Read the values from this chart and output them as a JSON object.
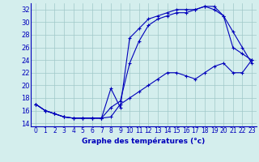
{
  "title": "",
  "xlabel": "Graphe des températures (°c)",
  "background_color": "#d4eeed",
  "grid_color": "#a0c8c8",
  "line_color": "#0000bb",
  "xlim_min": -0.5,
  "xlim_max": 23.5,
  "ylim_min": 13.5,
  "ylim_max": 33.0,
  "xticks": [
    0,
    1,
    2,
    3,
    4,
    5,
    6,
    7,
    8,
    9,
    10,
    11,
    12,
    13,
    14,
    15,
    16,
    17,
    18,
    19,
    20,
    21,
    22,
    23
  ],
  "yticks": [
    14,
    16,
    18,
    20,
    22,
    24,
    26,
    28,
    30,
    32
  ],
  "line1_x": [
    0,
    1,
    2,
    3,
    4,
    5,
    6,
    7,
    8,
    9,
    10,
    11,
    12,
    13,
    14,
    15,
    16,
    17,
    18,
    19,
    20,
    21,
    22,
    23
  ],
  "line1_y": [
    17,
    16,
    15.5,
    15,
    14.8,
    14.8,
    14.8,
    14.8,
    19.5,
    16.5,
    27.5,
    29,
    30.5,
    31,
    31.5,
    32,
    32,
    32,
    32.5,
    32.5,
    31,
    28.5,
    26,
    23.5
  ],
  "line2_x": [
    0,
    1,
    2,
    3,
    4,
    5,
    6,
    7,
    8,
    9,
    10,
    11,
    12,
    13,
    14,
    15,
    16,
    17,
    18,
    19,
    20,
    21,
    22,
    23
  ],
  "line2_y": [
    17,
    16,
    15.5,
    15,
    14.8,
    14.8,
    14.8,
    14.8,
    16.5,
    17.5,
    23.5,
    27,
    29.5,
    30.5,
    31,
    31.5,
    31.5,
    32,
    32.5,
    32,
    31,
    26,
    25,
    24
  ],
  "line3_x": [
    0,
    1,
    2,
    3,
    4,
    5,
    6,
    7,
    8,
    9,
    10,
    11,
    12,
    13,
    14,
    15,
    16,
    17,
    18,
    19,
    20,
    21,
    22,
    23
  ],
  "line3_y": [
    17,
    16,
    15.5,
    15,
    14.8,
    14.8,
    14.8,
    14.8,
    15,
    17,
    18,
    19,
    20,
    21,
    22,
    22,
    21.5,
    21,
    22,
    23,
    23.5,
    22,
    22,
    24
  ],
  "tick_fontsize": 5.5,
  "xlabel_fontsize": 6.5,
  "marker_size": 3,
  "line_width": 0.8
}
